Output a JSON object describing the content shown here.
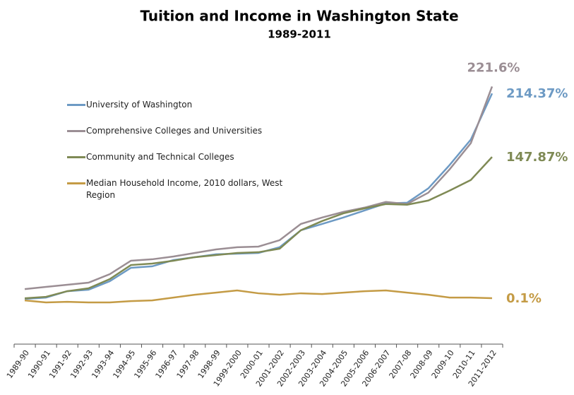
{
  "chart_data": {
    "type": "line",
    "title": "Tuition and Income in Washington State",
    "subtitle": "1989-2011",
    "categories": [
      "1989-90",
      "1990-91",
      "1991-92",
      "1992-93",
      "1993-94",
      "1994-95",
      "1995-96",
      "1996-97",
      "1997-98",
      "1998-99",
      "1999-2000",
      "2000-01",
      "2001-2002",
      "2002-2003",
      "2003-2004",
      "2004-2005",
      "2005-2006",
      "2006-2007",
      "2007-08",
      "2008-09",
      "2009-10",
      "2010-11",
      "2011-2012"
    ],
    "ylim": [
      -48,
      253
    ],
    "grid": false,
    "legend": "upper left",
    "series": [
      {
        "name": "University of Washington",
        "color": "#6d9ac4",
        "values": [
          -0.7,
          0.7,
          7.4,
          8.9,
          17.8,
          31.9,
          33.4,
          40,
          43,
          46,
          46.7,
          47.4,
          53.4,
          71.2,
          77.8,
          84.5,
          91.9,
          99.3,
          100,
          115,
          139.4,
          166.1,
          214.37
        ],
        "value_labels": [
          null,
          null,
          null,
          null,
          null,
          null,
          null,
          null,
          null,
          null,
          null,
          null,
          null,
          null,
          null,
          null,
          null,
          null,
          null,
          null,
          null,
          null,
          "214.37%"
        ]
      },
      {
        "name": "Comprehensive Colleges and Universities",
        "color": "#9b8e94",
        "values": [
          9.6,
          11.9,
          14.1,
          16.3,
          25.2,
          39.3,
          40.8,
          43.7,
          47.4,
          51.1,
          53.4,
          54.1,
          60.8,
          77.8,
          84.5,
          90.4,
          94.9,
          100.8,
          98.6,
          110.5,
          134.9,
          162.3,
          221.6
        ],
        "value_labels": [
          null,
          null,
          null,
          null,
          null,
          null,
          null,
          null,
          null,
          null,
          null,
          null,
          null,
          null,
          null,
          null,
          null,
          null,
          null,
          null,
          null,
          null,
          "221.6%"
        ]
      },
      {
        "name": "Community and Technical  Colleges",
        "color": "#7f8a55",
        "values": [
          0,
          1.5,
          7.4,
          10.4,
          20,
          34.8,
          36.3,
          39.3,
          43,
          45.2,
          47.4,
          48.2,
          51.9,
          71.2,
          80.8,
          88.9,
          94.1,
          98.6,
          97.9,
          102.3,
          112.7,
          123.8,
          147.87
        ],
        "value_labels": [
          null,
          null,
          null,
          null,
          null,
          null,
          null,
          null,
          null,
          null,
          null,
          null,
          null,
          null,
          null,
          null,
          null,
          null,
          null,
          null,
          null,
          null,
          "147.87%"
        ]
      },
      {
        "name": "Median Household Income, 2010 dollars, West Region",
        "color": "#c49b45",
        "values": [
          -2.2,
          -4.4,
          -3.7,
          -4.4,
          -4.4,
          -3,
          -2.2,
          0.7,
          3.7,
          5.9,
          8.2,
          5.2,
          3.7,
          5.2,
          4.4,
          5.9,
          7.4,
          8.2,
          5.9,
          3.7,
          0.7,
          0.7,
          0.1
        ],
        "value_labels": [
          null,
          null,
          null,
          null,
          null,
          null,
          null,
          null,
          null,
          null,
          null,
          null,
          null,
          null,
          null,
          null,
          null,
          null,
          null,
          null,
          null,
          null,
          "0.1%"
        ]
      }
    ]
  }
}
